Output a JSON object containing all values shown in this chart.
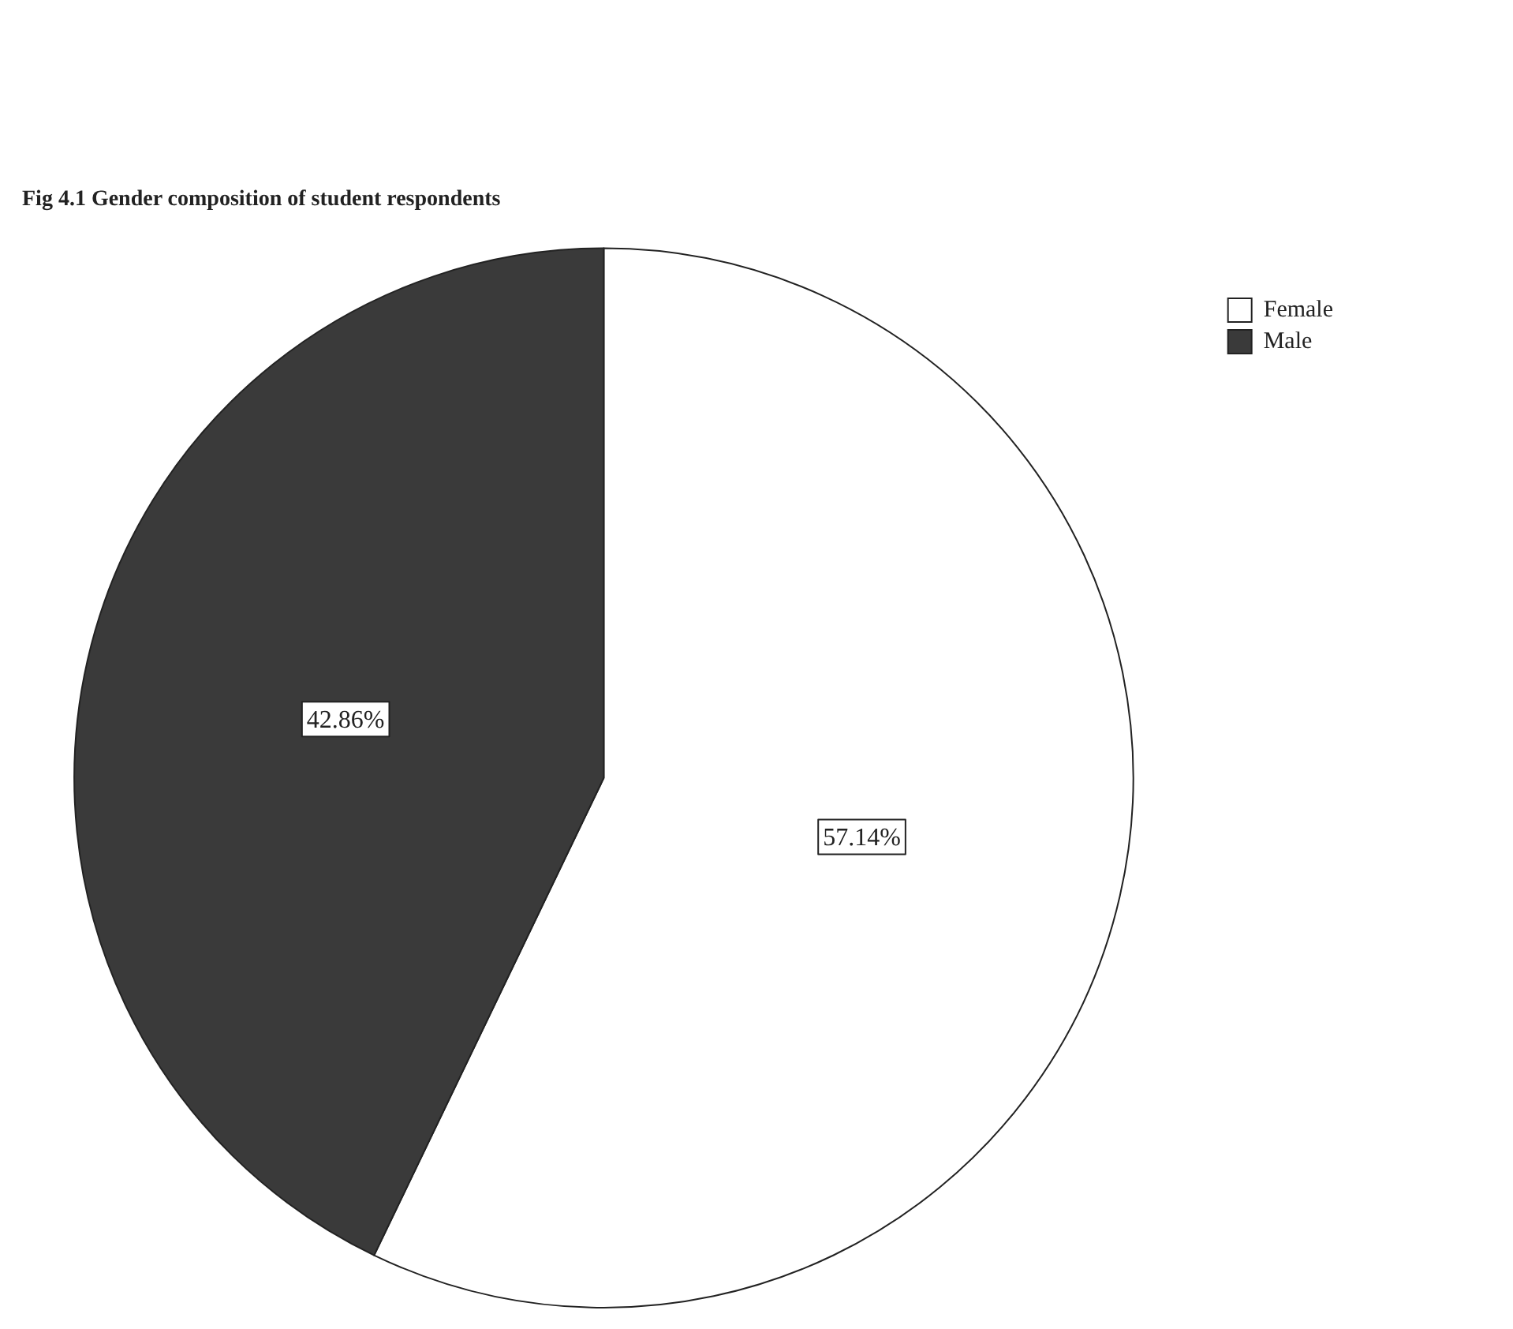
{
  "chart_data": {
    "type": "pie",
    "title": "Fig 4.1 Gender composition of student respondents",
    "categories": [
      "Female",
      "Male"
    ],
    "values": [
      57.14,
      42.86
    ],
    "colors": [
      "#ffffff",
      "#3a3a3a"
    ],
    "value_labels": [
      "57.14%",
      "42.86%"
    ],
    "legend": "top right"
  }
}
